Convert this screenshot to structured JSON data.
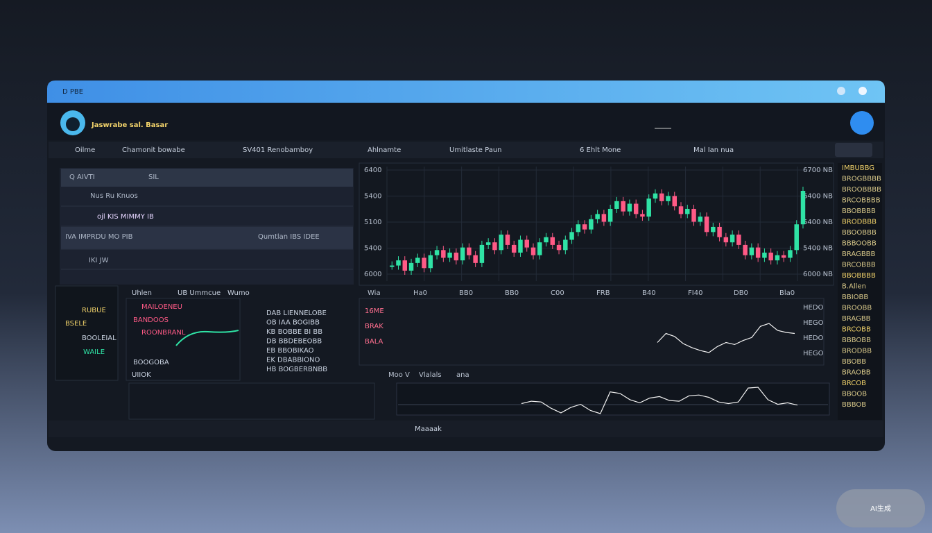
{
  "window": {
    "title": "D PBE"
  },
  "header": {
    "brand": "Jaswrabe sal. Basar"
  },
  "nav": [
    "Oilme",
    "Chamonit bowabe",
    "SV401 Renobamboy",
    "Ahlnamte",
    "Umitlaste Paun",
    "6 Ehlt Mone",
    "Mal Ian nua"
  ],
  "left_panel": {
    "rows": [
      "Q AIVTI",
      "SIL",
      "Nus Ru Knuos",
      "ojl KIS MIMMY IB",
      "IVA IMPRDU MO PIB",
      "Qumtlan IBS IDEE",
      "IKI JW"
    ]
  },
  "price_chart": {
    "left_labels": [
      "6400",
      "5400",
      "5100",
      "5400",
      "6000"
    ],
    "right_labels": [
      "6700 NB",
      "6400 NB",
      "5400 NB",
      "5400 NB",
      "6000 NB"
    ],
    "x_labels": [
      "Wia",
      "Ha0",
      "BB0",
      "BB0",
      "C00",
      "FRB",
      "B40",
      "FI40",
      "DB0",
      "Bla0"
    ],
    "closes": [
      22,
      26,
      18,
      24,
      28,
      20,
      30,
      34,
      28,
      32,
      26,
      36,
      30,
      24,
      38,
      40,
      34,
      46,
      38,
      32,
      42,
      36,
      30,
      40,
      44,
      38,
      34,
      42,
      48,
      54,
      50,
      58,
      62,
      56,
      66,
      72,
      64,
      70,
      62,
      60,
      74,
      78,
      72,
      76,
      68,
      62,
      66,
      56,
      60,
      48,
      52,
      44,
      40,
      46,
      38,
      30,
      36,
      28,
      32,
      26,
      30,
      28,
      34,
      54,
      80
    ]
  },
  "indicator_chart": {
    "left_labels": [
      "16ME",
      "BRAK",
      "BALA"
    ],
    "right_labels": [
      "HEDO",
      "HEGO",
      "HEDO",
      "HEGO"
    ],
    "values": [
      40,
      58,
      52,
      38,
      30,
      24,
      20,
      32,
      40,
      36,
      44,
      50,
      72,
      78,
      64,
      60,
      58
    ]
  },
  "oscillator": {
    "labels": [
      "Moo V",
      "Vlalals",
      "ana"
    ],
    "values": [
      30,
      36,
      34,
      18,
      6,
      20,
      28,
      12,
      4,
      60,
      56,
      40,
      32,
      44,
      48,
      38,
      36,
      50,
      52,
      46,
      34,
      30,
      34,
      70,
      72,
      40,
      28,
      32,
      26
    ]
  },
  "lower_left": {
    "headers": [
      "Uhlen",
      "UB Ummcue",
      "Wumo"
    ],
    "items": [
      "RUBUE",
      "BSELE",
      "BOOLEIAL",
      "WAILE",
      "MAILOENEU",
      "BANDOOS",
      "ROONBRANL",
      "BOOGOBA",
      "UIIOK"
    ],
    "table": [
      "DAB LIENNELOBE",
      "OB IAA BOGIBB",
      "KB BOBBE BI BB",
      "DB BBDEBEOBB",
      "EB BBOBIKAO",
      "EK DBABBIONO",
      "HB BOGBERBNBB"
    ]
  },
  "order_book": [
    "IMBUBBG",
    "BROGBBBB",
    "BROOBBBB",
    "BRCOBBBB",
    "BBOBBBB",
    "BRODBBB",
    "BBOOBBB",
    "BBBOOBB",
    "BRAGBBB",
    "BRCOBBB",
    "BBOBBBB",
    "B.Allen",
    "BBIOBB",
    "BROOBB",
    "BRAGBB",
    "BRCOBB",
    "BBBOBB",
    "BRODBB",
    "BBOBB",
    "BRAOBB",
    "BRCOB",
    "BBOOB",
    "BBBOB"
  ],
  "footer": {
    "label": "Maaaak"
  },
  "badge": "AI生成"
}
